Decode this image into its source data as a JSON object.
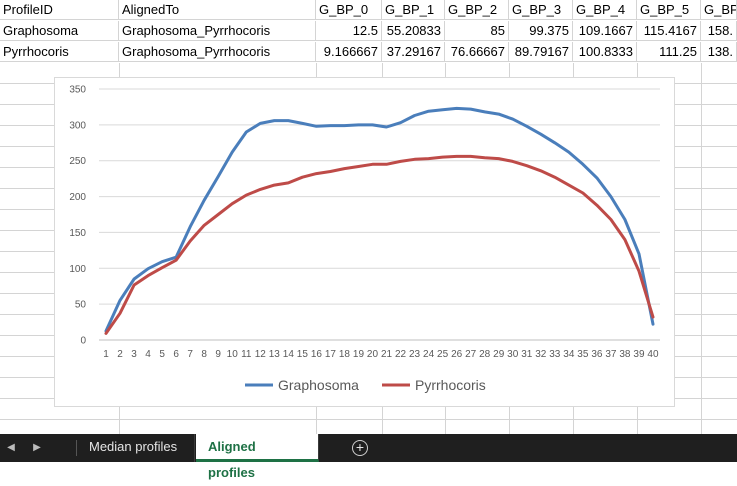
{
  "sheet": {
    "header": [
      "ProfileID",
      "AlignedTo",
      "G_BP_0",
      "G_BP_1",
      "G_BP_2",
      "G_BP_3",
      "G_BP_4",
      "G_BP_5",
      "G_BP"
    ],
    "rows": [
      [
        "Graphosoma",
        "Graphosoma_Pyrrhocoris",
        "12.5",
        "55.20833",
        "85",
        "99.375",
        "109.1667",
        "115.4167",
        "158."
      ],
      [
        "Pyrrhocoris",
        "Graphosoma_Pyrrhocoris",
        "9.166667",
        "37.29167",
        "76.66667",
        "89.79167",
        "100.8333",
        "111.25",
        "138."
      ]
    ]
  },
  "tabs": {
    "items": [
      "Median profiles",
      "Aligned profiles"
    ],
    "active": "Aligned profiles",
    "nav_prev": "◀",
    "nav_next": "▶",
    "add": "+"
  },
  "chart_data": {
    "type": "line",
    "title": "",
    "xlabel": "",
    "ylabel": "",
    "ylim": [
      0,
      350
    ],
    "yticks": [
      0,
      50,
      100,
      150,
      200,
      250,
      300,
      350
    ],
    "grid": "horizontal",
    "legend_position": "bottom",
    "x": [
      1,
      2,
      3,
      4,
      5,
      6,
      7,
      8,
      9,
      10,
      11,
      12,
      13,
      14,
      15,
      16,
      17,
      18,
      19,
      20,
      21,
      22,
      23,
      24,
      25,
      26,
      27,
      28,
      29,
      30,
      31,
      32,
      33,
      34,
      35,
      36,
      37,
      38,
      39,
      40
    ],
    "series": [
      {
        "name": "Graphosoma",
        "color": "#4a7ebb",
        "values": [
          12.5,
          55.2,
          85,
          99.4,
          109.2,
          115.4,
          158,
          195,
          228,
          262,
          290,
          302,
          306,
          306,
          302,
          298,
          299,
          299,
          300,
          300,
          297,
          303,
          313,
          319,
          321,
          323,
          322,
          318,
          315,
          308,
          298,
          287,
          275,
          262,
          245,
          226,
          200,
          168,
          120,
          22
        ]
      },
      {
        "name": "Pyrrhocoris",
        "color": "#be4b48",
        "values": [
          9.2,
          37.3,
          76.7,
          89.8,
          100.8,
          111.3,
          138,
          160,
          175,
          190,
          202,
          210,
          216,
          219,
          227,
          232,
          235,
          239,
          242,
          245,
          245,
          249,
          252,
          253,
          255,
          256,
          256,
          254,
          253,
          249,
          243,
          236,
          227,
          216,
          205,
          188,
          168,
          140,
          96,
          32
        ]
      }
    ]
  }
}
